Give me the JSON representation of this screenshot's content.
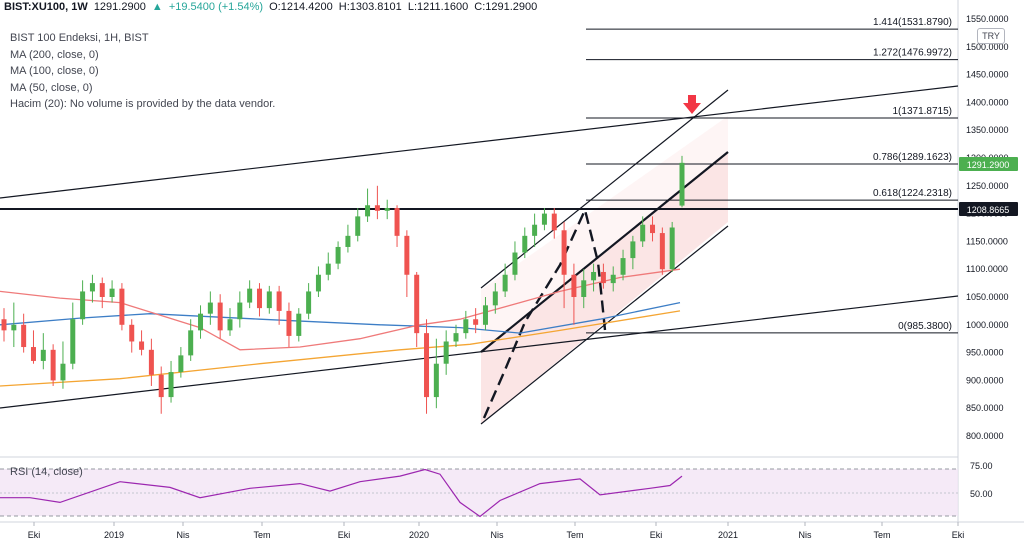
{
  "header": {
    "symbol": "BIST:XU100, 1W",
    "last": "1291.2900",
    "change": "+19.5400 (+1.54%)",
    "open_label": "O:",
    "open": "1214.4200",
    "high_label": "H:",
    "high": "1303.8101",
    "low_label": "L:",
    "low": "1211.1600",
    "close_label": "C:",
    "close": "1291.2900"
  },
  "legend": {
    "title": "BIST 100 Endeksi, 1H, BIST",
    "ma200": "MA (200, close, 0)",
    "ma100": "MA (100, close, 0)",
    "ma50": "MA (50, close, 0)",
    "volume": "Hacim (20): No volume is provided by the data vendor."
  },
  "currency": "TRY",
  "rsi": {
    "label": "RSI (14, close)",
    "levels": [
      "75.00",
      "50.00"
    ]
  },
  "price_badges": {
    "last": "1291.2900",
    "last_color": "#4caf50",
    "level": "1208.8665",
    "level_color": "#131722"
  },
  "fib_levels": [
    {
      "label": "1.414(1531.8790)",
      "value": 1531.879
    },
    {
      "label": "1.272(1476.9972)",
      "value": 1476.9972
    },
    {
      "label": "1(1371.8715)",
      "value": 1371.8715
    },
    {
      "label": "0.786(1289.1623)",
      "value": 1289.1623
    },
    {
      "label": "0.618(1224.2318)",
      "value": 1224.2318
    },
    {
      "label": "0(985.3800)",
      "value": 985.38
    }
  ],
  "colors": {
    "up": "#26a69a",
    "up_candle": "#4caf50",
    "down": "#ef5350",
    "ma200": "#f4a533",
    "ma100": "#3d7ec6",
    "ma50": "#ef7a7a",
    "rsi": "#9c27b0",
    "arrow": "#f23645"
  },
  "chart_data": {
    "type": "candlestick",
    "title": "BIST 100 Endeksi, 1H, BIST",
    "xlabel": "",
    "ylabel": "",
    "ylim": [
      780,
      1540
    ],
    "y_ticks": [
      "1550.0000",
      "1500.0000",
      "1450.0000",
      "1400.0000",
      "1350.0000",
      "1300.0000",
      "1250.0000",
      "1200.0000",
      "1150.0000",
      "1100.0000",
      "1050.0000",
      "1000.0000",
      "950.0000",
      "900.0000",
      "850.0000",
      "800.0000"
    ],
    "x_ticks": [
      "Eki",
      "2019",
      "Nis",
      "Tem",
      "Eki",
      "2020",
      "Nis",
      "Tem",
      "Eki",
      "2021",
      "Nis",
      "Tem",
      "Eki"
    ],
    "series": [
      {
        "name": "MA (200, close, 0)",
        "values": [
          [
            0,
            890
          ],
          [
            120,
            903
          ],
          [
            260,
            930
          ],
          [
            400,
            955
          ],
          [
            470,
            965
          ],
          [
            560,
            990
          ],
          [
            680,
            1025
          ]
        ]
      },
      {
        "name": "MA (100, close, 0)",
        "values": [
          [
            0,
            1000
          ],
          [
            80,
            1012
          ],
          [
            150,
            1020
          ],
          [
            260,
            1010
          ],
          [
            380,
            1000
          ],
          [
            460,
            995
          ],
          [
            520,
            985
          ],
          [
            600,
            1010
          ],
          [
            680,
            1040
          ]
        ]
      },
      {
        "name": "MA (50, close, 0)",
        "values": [
          [
            0,
            1060
          ],
          [
            60,
            1048
          ],
          [
            120,
            1040
          ],
          [
            200,
            995
          ],
          [
            240,
            955
          ],
          [
            300,
            960
          ],
          [
            360,
            975
          ],
          [
            420,
            1000
          ],
          [
            460,
            1010
          ],
          [
            520,
            1040
          ],
          [
            560,
            1060
          ],
          [
            620,
            1085
          ],
          [
            680,
            1100
          ]
        ]
      },
      {
        "name": "RSI (14, close)",
        "values": [
          [
            0,
            45
          ],
          [
            30,
            45
          ],
          [
            60,
            40
          ],
          [
            120,
            62
          ],
          [
            170,
            56
          ],
          [
            200,
            45
          ],
          [
            250,
            55
          ],
          [
            300,
            60
          ],
          [
            330,
            52
          ],
          [
            360,
            62
          ],
          [
            400,
            68
          ],
          [
            425,
            75
          ],
          [
            440,
            70
          ],
          [
            460,
            40
          ],
          [
            480,
            25
          ],
          [
            500,
            42
          ],
          [
            540,
            60
          ],
          [
            580,
            65
          ],
          [
            600,
            48
          ],
          [
            650,
            55
          ],
          [
            670,
            58
          ],
          [
            682,
            68
          ]
        ]
      }
    ],
    "candles": [
      [
        1010,
        990,
        1030,
        970
      ],
      [
        990,
        1000,
        1040,
        960
      ],
      [
        1000,
        960,
        1020,
        950
      ],
      [
        960,
        935,
        990,
        930
      ],
      [
        935,
        955,
        985,
        920
      ],
      [
        955,
        900,
        965,
        890
      ],
      [
        900,
        930,
        970,
        885
      ],
      [
        930,
        1010,
        1040,
        920
      ],
      [
        1010,
        1060,
        1080,
        1000
      ],
      [
        1060,
        1075,
        1090,
        1040
      ],
      [
        1075,
        1050,
        1085,
        1030
      ],
      [
        1050,
        1065,
        1080,
        1040
      ],
      [
        1065,
        1000,
        1075,
        990
      ],
      [
        1000,
        970,
        1010,
        950
      ],
      [
        970,
        955,
        990,
        945
      ],
      [
        955,
        910,
        975,
        890
      ],
      [
        910,
        870,
        925,
        840
      ],
      [
        870,
        915,
        935,
        860
      ],
      [
        915,
        945,
        960,
        905
      ],
      [
        945,
        990,
        1010,
        935
      ],
      [
        990,
        1020,
        1035,
        975
      ],
      [
        1020,
        1040,
        1060,
        1000
      ],
      [
        1040,
        990,
        1055,
        975
      ],
      [
        990,
        1010,
        1030,
        980
      ],
      [
        1010,
        1040,
        1060,
        995
      ],
      [
        1040,
        1065,
        1080,
        1030
      ],
      [
        1065,
        1030,
        1075,
        1015
      ],
      [
        1030,
        1060,
        1070,
        1020
      ],
      [
        1060,
        1025,
        1070,
        1000
      ],
      [
        1025,
        980,
        1040,
        960
      ],
      [
        980,
        1020,
        1030,
        970
      ],
      [
        1020,
        1060,
        1075,
        1010
      ],
      [
        1060,
        1090,
        1105,
        1050
      ],
      [
        1090,
        1110,
        1130,
        1080
      ],
      [
        1110,
        1140,
        1150,
        1100
      ],
      [
        1140,
        1160,
        1180,
        1130
      ],
      [
        1160,
        1195,
        1210,
        1150
      ],
      [
        1195,
        1215,
        1245,
        1185
      ],
      [
        1215,
        1205,
        1250,
        1190
      ],
      [
        1205,
        1210,
        1225,
        1190
      ],
      [
        1210,
        1160,
        1215,
        1140
      ],
      [
        1160,
        1090,
        1170,
        1050
      ],
      [
        1090,
        985,
        1095,
        960
      ],
      [
        985,
        870,
        1010,
        840
      ],
      [
        870,
        930,
        975,
        850
      ],
      [
        930,
        970,
        990,
        910
      ],
      [
        970,
        985,
        1000,
        960
      ],
      [
        985,
        1010,
        1025,
        975
      ],
      [
        1010,
        1000,
        1030,
        985
      ],
      [
        1000,
        1035,
        1050,
        990
      ],
      [
        1035,
        1060,
        1075,
        1020
      ],
      [
        1060,
        1090,
        1110,
        1050
      ],
      [
        1090,
        1130,
        1150,
        1080
      ],
      [
        1130,
        1160,
        1175,
        1120
      ],
      [
        1160,
        1180,
        1200,
        1140
      ],
      [
        1180,
        1200,
        1210,
        1170
      ],
      [
        1200,
        1170,
        1210,
        1155
      ],
      [
        1170,
        1090,
        1185,
        1030
      ],
      [
        1090,
        1050,
        1110,
        1000
      ],
      [
        1050,
        1080,
        1100,
        1030
      ],
      [
        1080,
        1095,
        1110,
        1060
      ],
      [
        1095,
        1075,
        1110,
        1065
      ],
      [
        1075,
        1090,
        1105,
        1060
      ],
      [
        1090,
        1120,
        1135,
        1080
      ],
      [
        1120,
        1150,
        1160,
        1100
      ],
      [
        1150,
        1180,
        1195,
        1140
      ],
      [
        1180,
        1165,
        1195,
        1150
      ],
      [
        1165,
        1100,
        1175,
        1090
      ],
      [
        1100,
        1175,
        1185,
        1095
      ],
      [
        1214.42,
        1291.29,
        1303.81,
        1211.16
      ]
    ]
  }
}
